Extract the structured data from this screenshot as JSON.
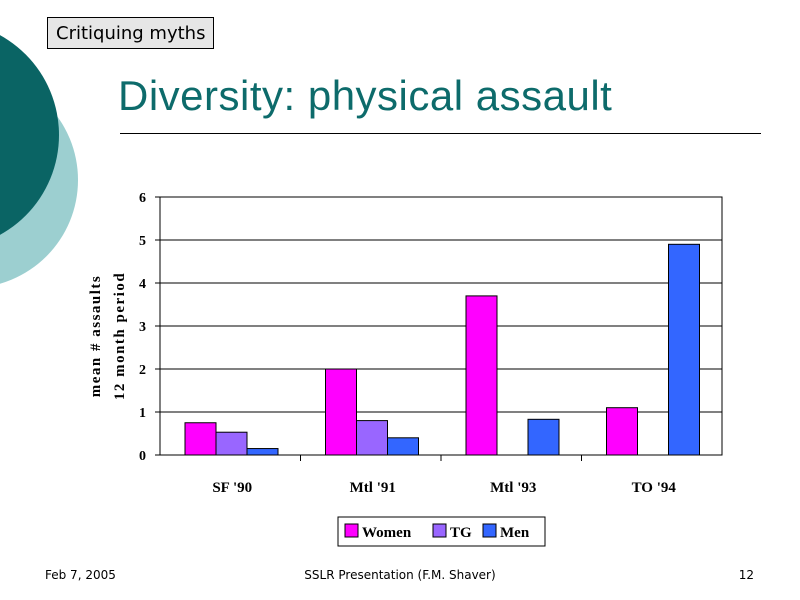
{
  "slide": {
    "section_tag": "Critiquing myths",
    "title": "Diversity: physical assault"
  },
  "footer": {
    "date": "Feb 7, 2005",
    "presentation": "SSLR Presentation (F.M. Shaver)",
    "page": "12"
  },
  "colors": {
    "title": "#0d6b6b",
    "deco_dark": "#0a6464",
    "deco_light": "#9ccfd0",
    "women": "#ff00ff",
    "tg": "#9966ff",
    "men": "#3366ff"
  },
  "chart_data": {
    "type": "bar",
    "title": "",
    "xlabel": "",
    "ylabel": "mean # assaults",
    "ylabel_line2": "12 month period",
    "ylim": [
      0,
      6
    ],
    "yticks": [
      0,
      1,
      2,
      3,
      4,
      5,
      6
    ],
    "grid": true,
    "legend_position": "bottom-center",
    "categories": [
      "SF '90",
      "Mtl '91",
      "Mtl '93",
      "TO '94"
    ],
    "series": [
      {
        "name": "Women",
        "color": "#ff00ff",
        "values": [
          0.75,
          2.0,
          3.7,
          1.1
        ]
      },
      {
        "name": "TG",
        "color": "#9966ff",
        "values": [
          0.53,
          0.8,
          null,
          null
        ]
      },
      {
        "name": "Men",
        "color": "#3366ff",
        "values": [
          0.15,
          0.4,
          0.83,
          4.9
        ]
      }
    ]
  }
}
